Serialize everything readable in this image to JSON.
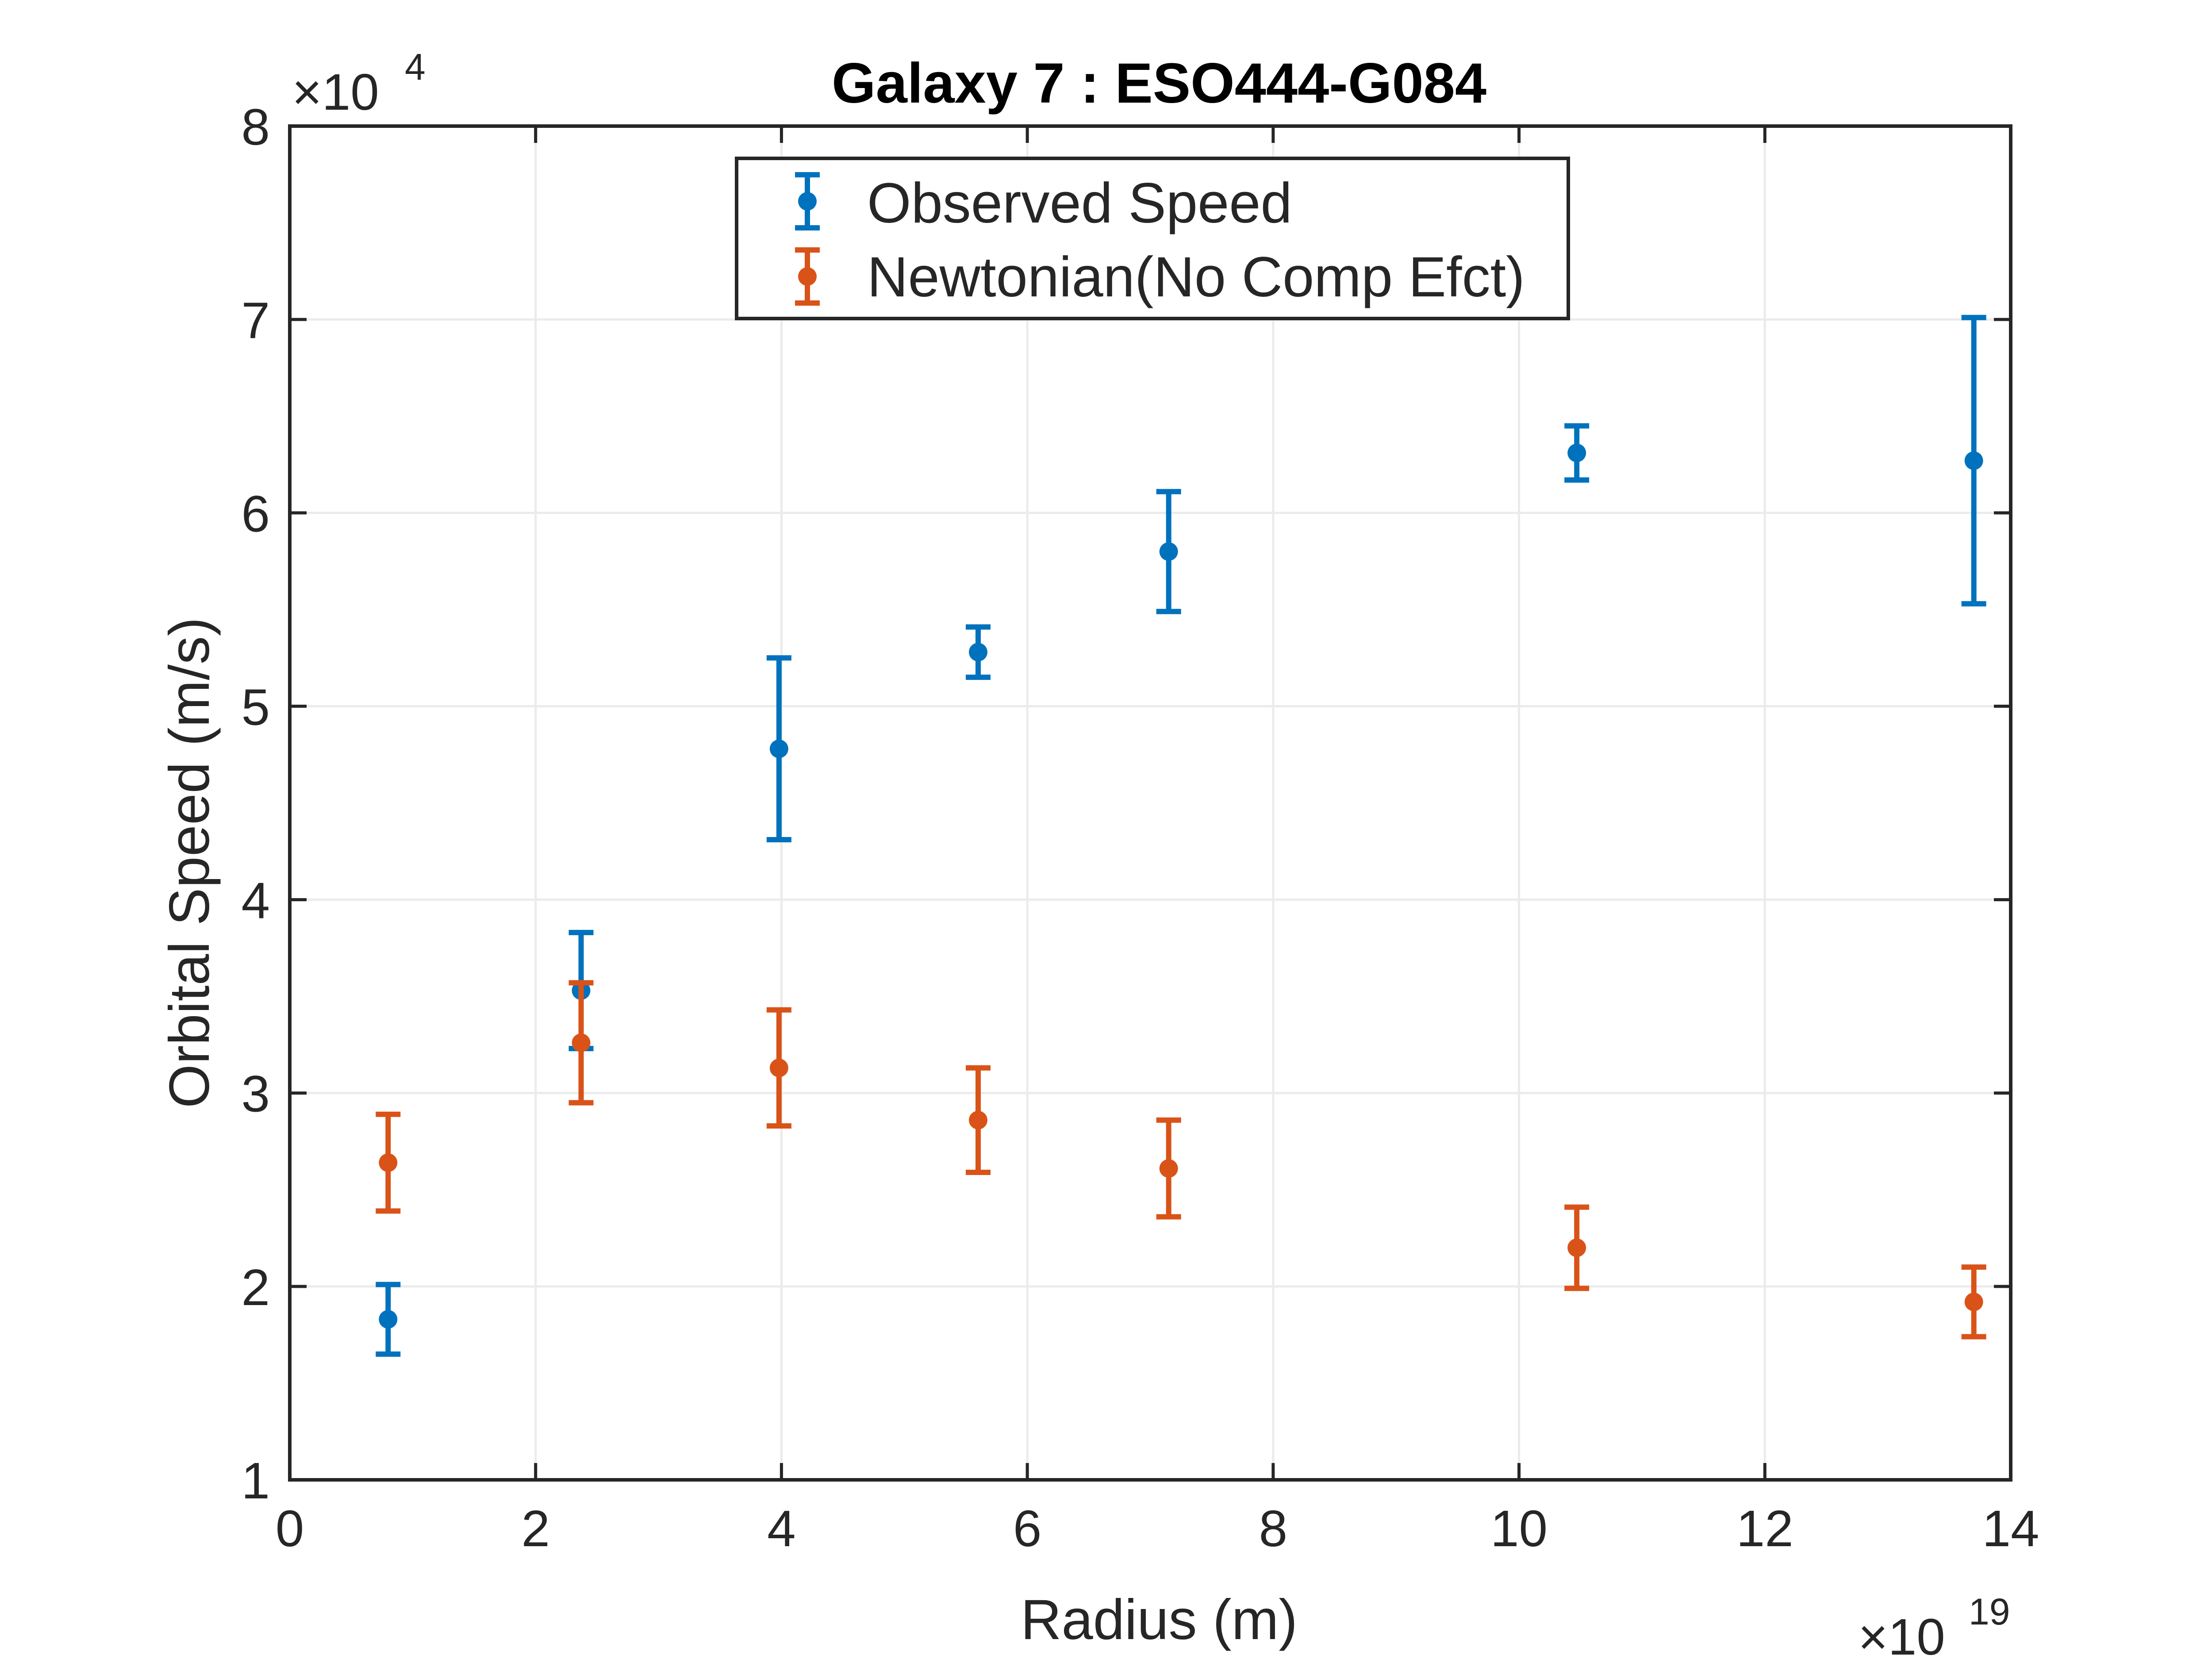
{
  "chart_data": {
    "type": "scatter",
    "title": "Galaxy 7 : ESO444-G084",
    "xlabel": "Radius (m)",
    "ylabel": "Orbital Speed (m/s)",
    "x_exponent_label": "×10",
    "x_exponent": "19",
    "y_exponent_label": "×10",
    "y_exponent": "4",
    "xlim": [
      0,
      14
    ],
    "ylim": [
      1,
      8
    ],
    "xticks": [
      0,
      2,
      4,
      6,
      8,
      10,
      12,
      14
    ],
    "yticks": [
      1,
      2,
      3,
      4,
      5,
      6,
      7,
      8
    ],
    "xtick_labels": [
      "0",
      "2",
      "4",
      "6",
      "8",
      "10",
      "12",
      "14"
    ],
    "ytick_labels": [
      "1",
      "2",
      "3",
      "4",
      "5",
      "6",
      "7",
      "8"
    ],
    "grid": true,
    "legend_position": "top-center",
    "series": [
      {
        "name": "Observed Speed",
        "color": "#0072BD",
        "x": [
          0.8,
          2.37,
          3.98,
          5.6,
          7.15,
          10.47,
          13.7
        ],
        "y": [
          1.83,
          3.53,
          4.78,
          5.28,
          5.8,
          6.31,
          6.27
        ],
        "err_low": [
          0.18,
          0.3,
          0.47,
          0.13,
          0.31,
          0.14,
          0.74
        ],
        "err_high": [
          0.18,
          0.3,
          0.47,
          0.13,
          0.31,
          0.14,
          0.74
        ]
      },
      {
        "name": "Newtonian(No Comp Efct)",
        "color": "#D95319",
        "x": [
          0.8,
          2.37,
          3.98,
          5.6,
          7.15,
          10.47,
          13.7
        ],
        "y": [
          2.64,
          3.26,
          3.13,
          2.86,
          2.61,
          2.2,
          1.92
        ],
        "err_low": [
          0.25,
          0.31,
          0.3,
          0.27,
          0.25,
          0.21,
          0.18
        ],
        "err_high": [
          0.25,
          0.31,
          0.3,
          0.27,
          0.25,
          0.21,
          0.18
        ]
      }
    ]
  }
}
